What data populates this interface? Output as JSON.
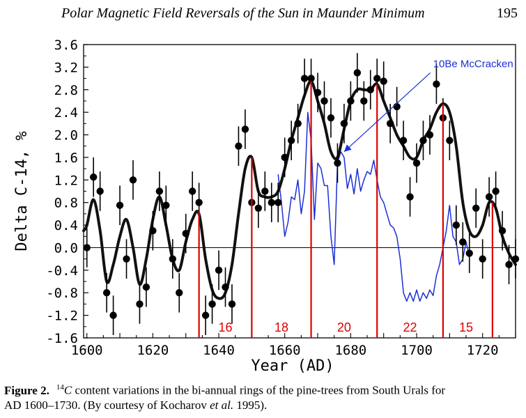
{
  "header": {
    "running_title": "Polar Magnetic Field Reversals of the Sun in Maunder Minimum",
    "page_number": "195"
  },
  "caption": {
    "label": "Figure 2.",
    "superscript": "14",
    "symbol": "C",
    "text_line1": "content variations in the bi-annual rings of the pine-trees from South Urals for",
    "text_line2_a": "AD 1600–1730. (By courtesy of Kocharov",
    "text_line2_italic": "et al.",
    "text_line2_b": "1995)."
  },
  "colors": {
    "c14_series": "#111111",
    "be_series": "#1a2fd6",
    "reversal_lines": "#dd0000",
    "annotation": "#1a2fd6"
  },
  "chart_data": {
    "type": "line",
    "title": "",
    "xlabel": "Year (AD)",
    "ylabel": "Delta C-14, %",
    "xlim": [
      1599,
      1730
    ],
    "ylim": [
      -1.6,
      3.6
    ],
    "x_ticks": [
      1600,
      1620,
      1640,
      1660,
      1680,
      1700,
      1720
    ],
    "y_ticks": [
      3.6,
      3.2,
      2.8,
      2.4,
      2.0,
      1.6,
      1.2,
      0.8,
      0.4,
      0.0,
      -0.4,
      -0.8,
      -1.2,
      -1.6
    ],
    "y_tick_labels": [
      "3.6",
      "3.2",
      "2.8",
      "2.4",
      "2.0",
      "1.6",
      "1.2",
      "0.8",
      "0.4",
      "0.0",
      "-0.4",
      "-0.8",
      "-1.2",
      "-1.6"
    ],
    "zero_line": 0.0,
    "series": [
      {
        "kind": "points",
        "x": [
          1600,
          1602,
          1604,
          1606,
          1608,
          1610,
          1612,
          1614,
          1616,
          1618,
          1620,
          1622,
          1624,
          1626,
          1628,
          1630,
          1632,
          1634,
          1636,
          1638,
          1640,
          1642,
          1644,
          1646,
          1648,
          1650,
          1652,
          1654,
          1656,
          1658,
          1660,
          1662,
          1664,
          1666,
          1668,
          1670,
          1672,
          1674,
          1676,
          1678,
          1680,
          1682,
          1684,
          1686,
          1688,
          1690,
          1692,
          1694,
          1696,
          1698,
          1700,
          1702,
          1704,
          1706,
          1708,
          1710,
          1712,
          1714,
          1716,
          1718,
          1720,
          1722,
          1724,
          1726,
          1728,
          1730
        ],
        "y": [
          0.0,
          1.25,
          1.0,
          -0.8,
          -1.2,
          0.75,
          -0.2,
          1.2,
          -1.0,
          -0.7,
          0.3,
          1.0,
          0.75,
          -0.2,
          -0.8,
          0.25,
          1.0,
          0.8,
          -1.2,
          -1.0,
          -0.4,
          -0.7,
          -1.0,
          1.8,
          2.1,
          0.8,
          0.7,
          1.0,
          0.8,
          0.8,
          1.6,
          1.9,
          2.2,
          3.0,
          3.0,
          2.75,
          2.6,
          2.3,
          1.5,
          2.2,
          2.6,
          3.1,
          2.6,
          2.8,
          3.0,
          2.95,
          2.2,
          2.5,
          1.9,
          0.9,
          1.5,
          1.9,
          2.0,
          2.9,
          2.3,
          1.9,
          0.4,
          0.1,
          -0.1,
          0.7,
          -0.2,
          0.9,
          1.0,
          0.3,
          -0.3,
          -0.2
        ],
        "error_bar": 0.35
      },
      {
        "kind": "smooth-black",
        "x": [
          1599,
          1600,
          1602,
          1604,
          1606,
          1608,
          1610,
          1612,
          1614,
          1616,
          1618,
          1620,
          1622,
          1624,
          1626,
          1628,
          1630,
          1632,
          1634,
          1636,
          1638,
          1640,
          1642,
          1644,
          1646,
          1648,
          1650,
          1652,
          1654,
          1656,
          1658,
          1660,
          1662,
          1664,
          1666,
          1668,
          1670,
          1672,
          1674,
          1676,
          1678,
          1680,
          1682,
          1684,
          1686,
          1688,
          1690,
          1692,
          1694,
          1696,
          1698,
          1700,
          1702,
          1704,
          1706,
          1708,
          1710,
          1712,
          1714,
          1716,
          1718,
          1720,
          1722,
          1724,
          1726,
          1728,
          1730
        ],
        "y": [
          0.3,
          0.4,
          0.85,
          0.3,
          -0.6,
          -0.3,
          0.2,
          0.5,
          0.0,
          -0.65,
          -0.2,
          0.5,
          0.9,
          0.4,
          -0.2,
          -0.4,
          0.1,
          0.5,
          0.6,
          -0.2,
          -0.75,
          -0.9,
          -0.8,
          -0.3,
          0.6,
          1.4,
          1.6,
          1.0,
          0.9,
          0.9,
          1.0,
          1.4,
          1.9,
          2.3,
          2.7,
          2.95,
          2.6,
          2.2,
          1.7,
          1.6,
          2.1,
          2.6,
          2.8,
          2.8,
          2.8,
          2.9,
          2.6,
          2.3,
          2.0,
          1.8,
          1.6,
          1.6,
          1.9,
          2.1,
          2.4,
          2.55,
          2.4,
          1.8,
          0.8,
          0.3,
          0.2,
          0.4,
          0.8,
          0.7,
          0.2,
          -0.1,
          -0.3
        ]
      },
      {
        "name": "10Be McCracken",
        "kind": "blue",
        "x": [
          1658,
          1659,
          1660,
          1661,
          1662,
          1663,
          1664,
          1665,
          1666,
          1667,
          1668,
          1669,
          1670,
          1671,
          1672,
          1673,
          1674,
          1675,
          1676,
          1677,
          1678,
          1679,
          1680,
          1681,
          1682,
          1683,
          1684,
          1685,
          1686,
          1687,
          1688,
          1689,
          1690,
          1691,
          1692,
          1693,
          1694,
          1695,
          1696,
          1697,
          1698,
          1699,
          1700,
          1701,
          1702,
          1703,
          1704,
          1705,
          1706,
          1707,
          1708,
          1709,
          1710,
          1711,
          1712,
          1713,
          1714,
          1715,
          1716
        ],
        "y": [
          1.3,
          0.8,
          0.2,
          0.45,
          0.9,
          0.85,
          1.2,
          0.6,
          1.0,
          2.4,
          1.9,
          0.5,
          1.5,
          1.4,
          1.1,
          1.1,
          0.2,
          -0.3,
          1.5,
          1.7,
          1.6,
          1.05,
          1.3,
          0.95,
          1.4,
          1.0,
          1.2,
          1.35,
          1.3,
          1.55,
          1.2,
          0.9,
          0.8,
          0.6,
          0.4,
          0.35,
          0.2,
          -0.2,
          -0.8,
          -0.95,
          -0.8,
          -0.95,
          -0.75,
          -0.95,
          -0.8,
          -0.9,
          -0.75,
          -0.85,
          -0.5,
          -0.3,
          0.0,
          0.3,
          0.75,
          0.2,
          0.1,
          -0.3,
          -0.2,
          0.1,
          -0.15
        ]
      }
    ],
    "reversals": [
      {
        "x": 1634,
        "y": 0.65
      },
      {
        "x": 1650,
        "y": 1.6
      },
      {
        "x": 1668,
        "y": 2.95
      },
      {
        "x": 1688,
        "y": 2.9
      },
      {
        "x": 1708,
        "y": 2.55
      },
      {
        "x": 1723,
        "y": 0.8
      }
    ],
    "cycle_labels": [
      {
        "text": "16",
        "x": 1642
      },
      {
        "text": "18",
        "x": 1659
      },
      {
        "text": "20",
        "x": 1678
      },
      {
        "text": "22",
        "x": 1698
      },
      {
        "text": "15",
        "x": 1715
      }
    ],
    "annotation": {
      "text": "10Be McCracken",
      "text_at": [
        1705,
        3.2
      ],
      "arrow_to": [
        1678,
        1.7
      ]
    }
  }
}
